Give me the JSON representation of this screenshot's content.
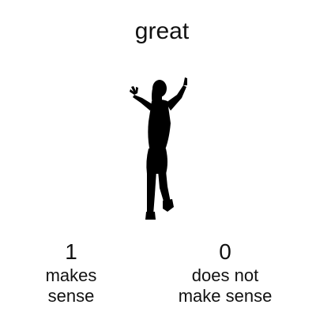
{
  "prompt": {
    "word": "great"
  },
  "figure": {
    "icon": "dancing-silhouette-icon",
    "color": "#000000"
  },
  "options": [
    {
      "value": "1",
      "label_line1": "makes",
      "label_line2": "sense"
    },
    {
      "value": "0",
      "label_line1": "does not",
      "label_line2": "make sense"
    }
  ]
}
